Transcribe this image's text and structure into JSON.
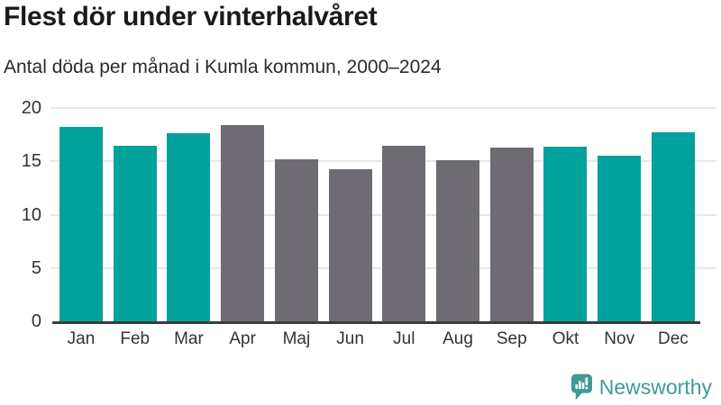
{
  "chart": {
    "title": "Flest dör under vinterhalvåret",
    "subtitle": "Antal döda per månad i Kumla kommun, 2000–2024"
  },
  "chart_data": {
    "type": "bar",
    "title": "Flest dör under vinterhalvåret",
    "subtitle": "Antal döda per månad i Kumla kommun, 2000–2024",
    "categories": [
      "Jan",
      "Feb",
      "Mar",
      "Apr",
      "Maj",
      "Jun",
      "Jul",
      "Aug",
      "Sep",
      "Okt",
      "Nov",
      "Dec"
    ],
    "values": [
      18.2,
      16.5,
      17.6,
      18.4,
      15.2,
      14.3,
      16.5,
      15.1,
      16.3,
      16.4,
      15.5,
      17.7
    ],
    "bar_colors": [
      "#00a29b",
      "#00a29b",
      "#00a29b",
      "#6e6c72",
      "#6e6c72",
      "#6e6c72",
      "#6e6c72",
      "#6e6c72",
      "#6e6c72",
      "#00a29b",
      "#00a29b",
      "#00a29b"
    ],
    "color_meaning": "teal = vinterhalvår (Okt–Mar), gray = sommarhalvår (Apr–Sep)",
    "xlabel": "",
    "ylabel": "",
    "ylim": [
      0,
      20
    ],
    "yticks": [
      0,
      5,
      10,
      15,
      20
    ],
    "grid": "horizontal",
    "legend_position": "none"
  },
  "style": {
    "accent_teal": "#00a29b",
    "neutral_gray": "#6e6c72",
    "gridline_color": "#e6e6e6",
    "axis_line_color": "#3b3b3b",
    "title_color": "#1a1a1a",
    "tick_label_color": "#333333"
  },
  "footer": {
    "brand": "Newsworthy",
    "brand_color": "#3f9a94"
  }
}
